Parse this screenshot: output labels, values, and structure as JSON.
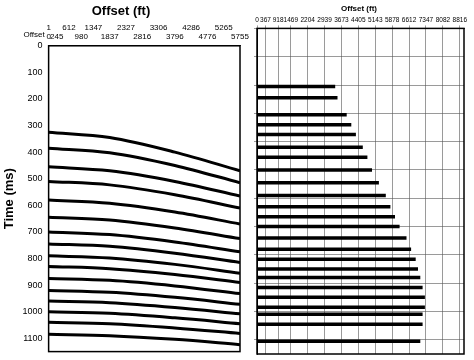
{
  "chart_data": [
    {
      "type": "line",
      "title": "Offset (ft)",
      "annotation": "Offset",
      "ylabel": "Time (ms)",
      "color": "#000000",
      "grid": false,
      "xlim": [
        0,
        5755
      ],
      "xticks": [
        0,
        1,
        245,
        612,
        980,
        1347,
        1837,
        2327,
        2816,
        3306,
        3796,
        4286,
        4776,
        5265,
        5755
      ],
      "ylim": [
        0,
        1150
      ],
      "yticks": [
        0,
        100,
        200,
        300,
        400,
        500,
        600,
        700,
        800,
        900,
        1000,
        1100
      ],
      "x": [
        0,
        1837,
        3796,
        5755
      ],
      "series": [
        {
          "values": [
            325,
            345,
            400,
            470
          ]
        },
        {
          "values": [
            385,
            402,
            450,
            515
          ]
        },
        {
          "values": [
            455,
            470,
            510,
            565
          ]
        },
        {
          "values": [
            510,
            523,
            560,
            610
          ]
        },
        {
          "values": [
            580,
            592,
            625,
            670
          ]
        },
        {
          "values": [
            645,
            655,
            685,
            725
          ]
        },
        {
          "values": [
            700,
            710,
            738,
            775
          ]
        },
        {
          "values": [
            745,
            754,
            780,
            815
          ]
        },
        {
          "values": [
            790,
            798,
            822,
            855
          ]
        },
        {
          "values": [
            830,
            838,
            860,
            890
          ]
        },
        {
          "values": [
            875,
            882,
            903,
            932
          ]
        },
        {
          "values": [
            920,
            927,
            946,
            972
          ]
        },
        {
          "values": [
            960,
            966,
            984,
            1008
          ]
        },
        {
          "values": [
            1000,
            1006,
            1023,
            1045
          ]
        },
        {
          "values": [
            1040,
            1045,
            1061,
            1082
          ]
        },
        {
          "values": [
            1085,
            1090,
            1104,
            1124
          ]
        }
      ]
    },
    {
      "type": "line",
      "title": "Offset (ft)",
      "color": "#000000",
      "grid": true,
      "tick_labels": "x",
      "xlim": [
        0,
        9000
      ],
      "xticks": [
        0,
        367,
        918,
        1469,
        2204,
        2939,
        3673,
        4405,
        5143,
        5878,
        6612,
        7347,
        8082,
        8816
      ],
      "ylim": [
        0,
        1150
      ],
      "yticks": [
        0,
        100,
        200,
        300,
        400,
        500,
        600,
        700,
        800,
        900,
        1000,
        1100
      ],
      "series": [
        {
          "x": [
            0,
            3400
          ],
          "values": [
            205,
            205
          ]
        },
        {
          "x": [
            0,
            3500
          ],
          "values": [
            245,
            245
          ]
        },
        {
          "x": [
            0,
            3900
          ],
          "values": [
            305,
            305
          ]
        },
        {
          "x": [
            0,
            4100
          ],
          "values": [
            340,
            340
          ]
        },
        {
          "x": [
            0,
            4300
          ],
          "values": [
            375,
            375
          ]
        },
        {
          "x": [
            0,
            4600
          ],
          "values": [
            420,
            420
          ]
        },
        {
          "x": [
            0,
            4800
          ],
          "values": [
            455,
            455
          ]
        },
        {
          "x": [
            0,
            5000
          ],
          "values": [
            500,
            500
          ]
        },
        {
          "x": [
            0,
            5300
          ],
          "values": [
            545,
            545
          ]
        },
        {
          "x": [
            0,
            5600
          ],
          "values": [
            590,
            590
          ]
        },
        {
          "x": [
            0,
            5800
          ],
          "values": [
            630,
            630
          ]
        },
        {
          "x": [
            0,
            6000
          ],
          "values": [
            665,
            665
          ]
        },
        {
          "x": [
            0,
            6200
          ],
          "values": [
            700,
            700
          ]
        },
        {
          "x": [
            0,
            6500
          ],
          "values": [
            740,
            740
          ]
        },
        {
          "x": [
            0,
            6700
          ],
          "values": [
            780,
            780
          ]
        },
        {
          "x": [
            0,
            6900
          ],
          "values": [
            815,
            815
          ]
        },
        {
          "x": [
            0,
            7000
          ],
          "values": [
            850,
            850
          ]
        },
        {
          "x": [
            0,
            7100
          ],
          "values": [
            880,
            880
          ]
        },
        {
          "x": [
            0,
            7200
          ],
          "values": [
            915,
            915
          ]
        },
        {
          "x": [
            0,
            7300
          ],
          "values": [
            950,
            950
          ]
        },
        {
          "x": [
            0,
            7300
          ],
          "values": [
            985,
            985
          ]
        },
        {
          "x": [
            0,
            7200
          ],
          "values": [
            1010,
            1010
          ]
        },
        {
          "x": [
            0,
            7200
          ],
          "values": [
            1045,
            1045
          ]
        },
        {
          "x": [
            0,
            7100
          ],
          "values": [
            1105,
            1105
          ]
        }
      ]
    }
  ]
}
